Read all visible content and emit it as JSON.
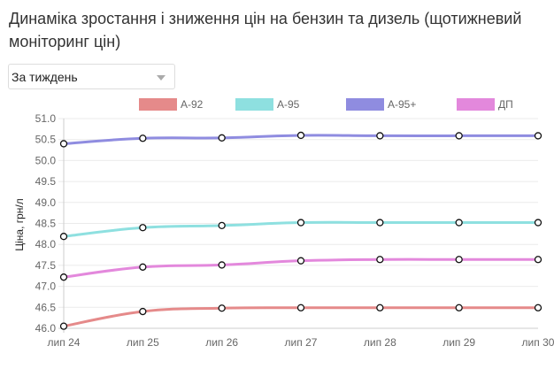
{
  "header": {
    "title": "Динаміка зростання і зниження цін на бензин та дизель (щотижневий моніторинг цін)"
  },
  "period_select": {
    "value": "За тиждень"
  },
  "chart_data": {
    "type": "line",
    "title": "",
    "xlabel": "",
    "ylabel": "Ціна, грн/л",
    "ylim": [
      46.0,
      51.0
    ],
    "yticks": [
      "46.0",
      "46.5",
      "47.0",
      "47.5",
      "48.0",
      "48.5",
      "49.0",
      "49.5",
      "50.0",
      "50.5",
      "51.0"
    ],
    "categories": [
      "лип 24",
      "лип 25",
      "лип 26",
      "лип 27",
      "лип 28",
      "лип 29",
      "лип 30"
    ],
    "legend_position": "top",
    "grid": true,
    "series": [
      {
        "name": "А-92",
        "color": "#e58a8a",
        "values": [
          46.05,
          46.4,
          46.48,
          46.49,
          46.49,
          46.49,
          46.49
        ]
      },
      {
        "name": "А-95",
        "color": "#8ee0e0",
        "values": [
          48.19,
          48.4,
          48.45,
          48.52,
          48.52,
          48.52,
          48.52
        ]
      },
      {
        "name": "А-95+",
        "color": "#8f8ce0",
        "values": [
          50.4,
          50.53,
          50.54,
          50.6,
          50.59,
          50.59,
          50.59
        ]
      },
      {
        "name": "ДП",
        "color": "#e388dc",
        "values": [
          47.22,
          47.46,
          47.51,
          47.61,
          47.64,
          47.64,
          47.64
        ]
      }
    ]
  }
}
